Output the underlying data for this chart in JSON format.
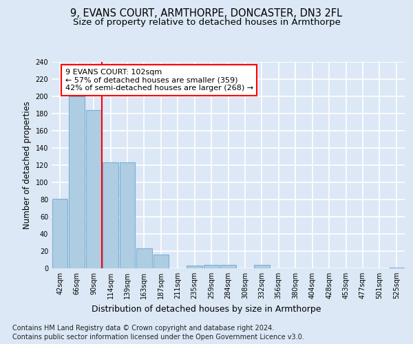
{
  "title1": "9, EVANS COURT, ARMTHORPE, DONCASTER, DN3 2FL",
  "title2": "Size of property relative to detached houses in Armthorpe",
  "xlabel": "Distribution of detached houses by size in Armthorpe",
  "ylabel": "Number of detached properties",
  "categories": [
    "42sqm",
    "66sqm",
    "90sqm",
    "114sqm",
    "139sqm",
    "163sqm",
    "187sqm",
    "211sqm",
    "235sqm",
    "259sqm",
    "284sqm",
    "308sqm",
    "332sqm",
    "356sqm",
    "380sqm",
    "404sqm",
    "428sqm",
    "453sqm",
    "477sqm",
    "501sqm",
    "525sqm"
  ],
  "values": [
    81,
    200,
    184,
    123,
    123,
    23,
    16,
    0,
    3,
    4,
    4,
    0,
    4,
    0,
    0,
    0,
    0,
    0,
    0,
    0,
    1
  ],
  "bar_color": "#aecde3",
  "bar_edge_color": "#7aafd4",
  "property_line_x": 2.5,
  "annotation_text": "9 EVANS COURT: 102sqm\n← 57% of detached houses are smaller (359)\n42% of semi-detached houses are larger (268) →",
  "annotation_box_facecolor": "white",
  "annotation_box_edgecolor": "red",
  "vline_color": "red",
  "ylim": [
    0,
    240
  ],
  "yticks": [
    0,
    20,
    40,
    60,
    80,
    100,
    120,
    140,
    160,
    180,
    200,
    220,
    240
  ],
  "bg_color": "#dce8f5",
  "plot_bg_color": "#dce8f5",
  "grid_color": "white",
  "footer_line1": "Contains HM Land Registry data © Crown copyright and database right 2024.",
  "footer_line2": "Contains public sector information licensed under the Open Government Licence v3.0.",
  "title1_fontsize": 10.5,
  "title2_fontsize": 9.5,
  "xlabel_fontsize": 9,
  "ylabel_fontsize": 8.5,
  "tick_fontsize": 7,
  "annotation_fontsize": 8,
  "footer_fontsize": 7
}
